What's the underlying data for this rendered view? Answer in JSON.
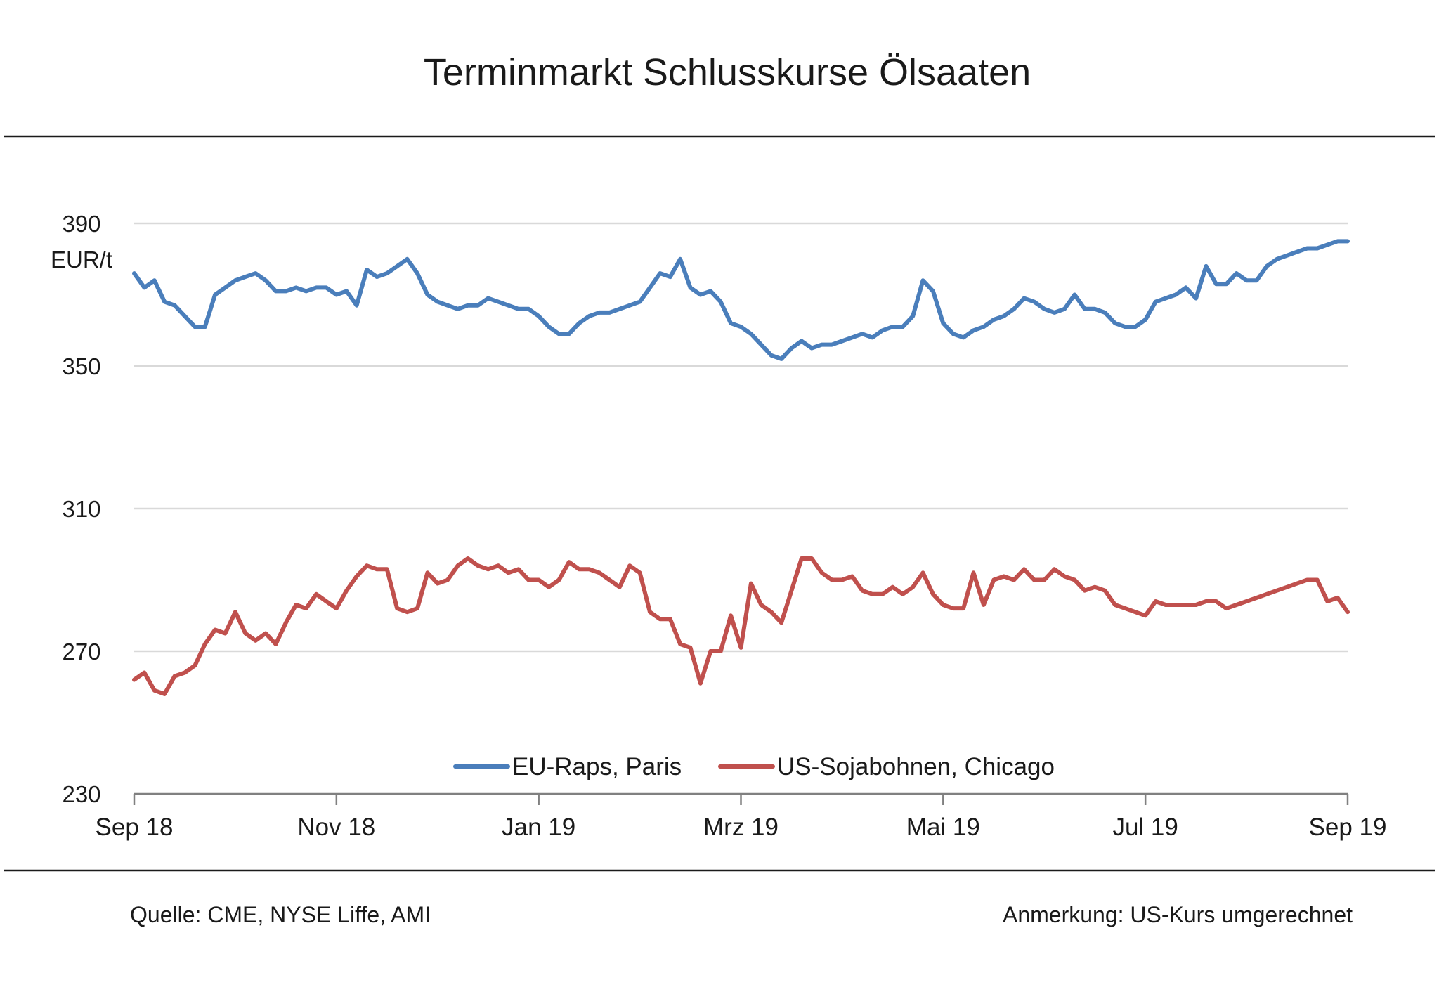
{
  "chart_data": {
    "type": "line",
    "title": "Terminmarkt Schlusskurse Ölsaaten",
    "ylabel": "EUR/t",
    "xlabel": "",
    "ylim": [
      230,
      390
    ],
    "yticks": [
      390,
      350,
      310,
      270,
      230
    ],
    "xticks": [
      "Sep 18",
      "Nov 18",
      "Jan 19",
      "Mrz 19",
      "Mai 19",
      "Jul 19",
      "Sep 19"
    ],
    "grid": true,
    "legend_position": "bottom-center",
    "series": [
      {
        "name": "EU-Raps, Paris",
        "color": "#4a7ebb",
        "x": [
          0,
          0.05,
          0.1,
          0.15,
          0.2,
          0.25,
          0.3,
          0.35,
          0.4,
          0.45,
          0.5,
          0.55,
          0.6,
          0.65,
          0.7,
          0.75,
          0.8,
          0.85,
          0.9,
          0.95,
          1.0,
          1.05,
          1.1,
          1.15,
          1.2,
          1.25,
          1.3,
          1.35,
          1.4,
          1.45,
          1.5,
          1.55,
          1.6,
          1.65,
          1.7,
          1.75,
          1.8,
          1.85,
          1.9,
          1.95,
          2.0,
          2.05,
          2.1,
          2.15,
          2.2,
          2.25,
          2.3,
          2.35,
          2.4,
          2.45,
          2.5,
          2.55,
          2.6,
          2.65,
          2.7,
          2.75,
          2.8,
          2.85,
          2.9,
          2.95,
          3.0,
          3.05,
          3.1,
          3.15,
          3.2,
          3.25,
          3.3,
          3.35,
          3.4,
          3.45,
          3.5,
          3.55,
          3.6,
          3.65,
          3.7,
          3.75,
          3.8,
          3.85,
          3.9,
          3.95,
          4.0,
          4.05,
          4.1,
          4.15,
          4.2,
          4.25,
          4.3,
          4.35,
          4.4,
          4.45,
          4.5,
          4.55,
          4.6,
          4.65,
          4.7,
          4.75,
          4.8,
          4.85,
          4.9,
          4.95,
          5.0,
          5.05,
          5.1,
          5.15,
          5.2,
          5.25,
          5.3,
          5.35,
          5.4,
          5.45,
          5.5,
          5.55,
          5.6,
          5.65,
          5.7,
          5.75,
          5.8,
          5.85,
          5.9,
          5.95,
          6.0
        ],
        "values": [
          376,
          372,
          374,
          368,
          367,
          364,
          361,
          361,
          370,
          372,
          374,
          375,
          376,
          374,
          371,
          371,
          372,
          371,
          372,
          372,
          370,
          371,
          367,
          377,
          375,
          376,
          378,
          380,
          376,
          370,
          368,
          367,
          366,
          367,
          367,
          369,
          368,
          367,
          366,
          366,
          364,
          361,
          359,
          359,
          362,
          364,
          365,
          365,
          366,
          367,
          368,
          372,
          376,
          375,
          380,
          372,
          370,
          371,
          368,
          362,
          361,
          359,
          356,
          353,
          352,
          355,
          357,
          355,
          356,
          356,
          357,
          358,
          359,
          358,
          360,
          361,
          361,
          364,
          374,
          371,
          362,
          359,
          358,
          360,
          361,
          363,
          364,
          366,
          369,
          368,
          366,
          365,
          366,
          370,
          366,
          366,
          365,
          362,
          361,
          361,
          363,
          368,
          369,
          370,
          372,
          369,
          378,
          373,
          373,
          376,
          374,
          374,
          378,
          380,
          381,
          382,
          383,
          383,
          384,
          385,
          385
        ]
      },
      {
        "name": "US-Sojabohnen, Chicago",
        "color": "#c0504d",
        "x": [
          0,
          0.05,
          0.1,
          0.15,
          0.2,
          0.25,
          0.3,
          0.35,
          0.4,
          0.45,
          0.5,
          0.55,
          0.6,
          0.65,
          0.7,
          0.75,
          0.8,
          0.85,
          0.9,
          0.95,
          1.0,
          1.05,
          1.1,
          1.15,
          1.2,
          1.25,
          1.3,
          1.35,
          1.4,
          1.45,
          1.5,
          1.55,
          1.6,
          1.65,
          1.7,
          1.75,
          1.8,
          1.85,
          1.9,
          1.95,
          2.0,
          2.05,
          2.1,
          2.15,
          2.2,
          2.25,
          2.3,
          2.35,
          2.4,
          2.45,
          2.5,
          2.55,
          2.6,
          2.65,
          2.7,
          2.75,
          2.8,
          2.85,
          2.9,
          2.95,
          3.0,
          3.05,
          3.1,
          3.15,
          3.2,
          3.25,
          3.3,
          3.35,
          3.4,
          3.45,
          3.5,
          3.55,
          3.6,
          3.65,
          3.7,
          3.75,
          3.8,
          3.85,
          3.9,
          3.95,
          4.0,
          4.05,
          4.1,
          4.15,
          4.2,
          4.25,
          4.3,
          4.35,
          4.4,
          4.45,
          4.5,
          4.55,
          4.6,
          4.65,
          4.7,
          4.75,
          4.8,
          4.85,
          4.9,
          4.95,
          5.0,
          5.05,
          5.1,
          5.15,
          5.2,
          5.25,
          5.3,
          5.35,
          5.4,
          5.45,
          5.5,
          5.55,
          5.6,
          5.65,
          5.7,
          5.75,
          5.8,
          5.85,
          5.9,
          5.95,
          6.0
        ],
        "values": [
          262,
          264,
          259,
          258,
          263,
          264,
          266,
          272,
          276,
          275,
          281,
          275,
          273,
          275,
          272,
          278,
          283,
          282,
          286,
          284,
          282,
          287,
          291,
          294,
          293,
          293,
          282,
          281,
          282,
          292,
          289,
          290,
          294,
          296,
          294,
          293,
          294,
          292,
          293,
          290,
          290,
          288,
          290,
          295,
          293,
          293,
          292,
          290,
          288,
          294,
          292,
          281,
          279,
          279,
          272,
          271,
          261,
          270,
          270,
          280,
          271,
          289,
          283,
          281,
          278,
          287,
          296,
          296,
          292,
          290,
          290,
          291,
          287,
          286,
          286,
          288,
          286,
          288,
          292,
          286,
          283,
          282,
          282,
          292,
          283,
          290,
          291,
          290,
          293,
          290,
          290,
          293,
          291,
          290,
          287,
          288,
          287,
          283,
          282,
          281,
          280,
          284,
          283,
          283,
          283,
          283,
          284,
          284,
          282,
          283,
          284,
          285,
          286,
          287,
          288,
          289,
          290,
          290,
          284,
          285,
          281
        ]
      }
    ],
    "annotations": {
      "source": "Quelle: CME, NYSE Liffe, AMI",
      "note": "Anmerkung: US-Kurs umgerechnet"
    }
  }
}
